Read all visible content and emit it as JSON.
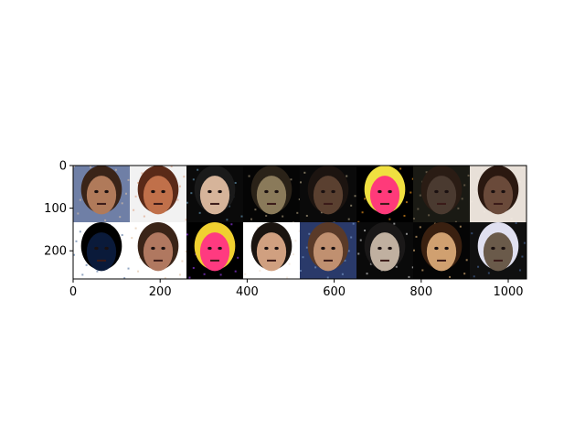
{
  "figure": {
    "background": "#ffffff",
    "image_grid": {
      "rows": 2,
      "cols": 8,
      "description_palette": [
        "#1b1b1b",
        "#6b4a3a",
        "#c58a6a",
        "#e8d3c0",
        "#2a3b6b",
        "#ff3c7a",
        "#f2e05a",
        "#ffffff"
      ]
    },
    "x_axis": {
      "ticks": [
        {
          "value": 0,
          "label": "0"
        },
        {
          "value": 200,
          "label": "200"
        },
        {
          "value": 400,
          "label": "400"
        },
        {
          "value": 600,
          "label": "600"
        },
        {
          "value": 800,
          "label": "800"
        },
        {
          "value": 1000,
          "label": "1000"
        }
      ],
      "range": [
        0,
        1042
      ]
    },
    "y_axis": {
      "ticks": [
        {
          "value": 0,
          "label": "0"
        },
        {
          "value": 100,
          "label": "100"
        },
        {
          "value": 200,
          "label": "200"
        }
      ],
      "range": [
        0,
        266
      ]
    }
  },
  "tiles": [
    {
      "bg": "#6f7fa6",
      "face": "#b07a5a",
      "hair": "#3a2418",
      "accent": "#d9c0a8"
    },
    {
      "bg": "#f2f2f2",
      "face": "#c0704a",
      "hair": "#5a2a18",
      "accent": "#e0a080"
    },
    {
      "bg": "#0a0a0a",
      "face": "#d6b49a",
      "hair": "#1a1a1a",
      "accent": "#6aa0c0"
    },
    {
      "bg": "#050505",
      "face": "#8a7a5a",
      "hair": "#2a2218",
      "accent": "#b0a080"
    },
    {
      "bg": "#0a0a0a",
      "face": "#5a4030",
      "hair": "#1c1410",
      "accent": "#c0b090"
    },
    {
      "bg": "#000000",
      "face": "#ff3a7a",
      "hair": "#f0e040",
      "accent": "#ffa020"
    },
    {
      "bg": "#1a1a14",
      "face": "#4a3a30",
      "hair": "#2a1c14",
      "accent": "#8a7a60"
    },
    {
      "bg": "#e8e0d8",
      "face": "#6a4a3a",
      "hair": "#2a1810",
      "accent": "#f0e8e0"
    },
    {
      "bg": "#ffffff",
      "face": "#0a1a3a",
      "hair": "#000000",
      "accent": "#4a6a9a"
    },
    {
      "bg": "#ffffff",
      "face": "#b07860",
      "hair": "#3a2418",
      "accent": "#e0c0a0"
    },
    {
      "bg": "#000000",
      "face": "#ff3a80",
      "hair": "#f0d030",
      "accent": "#a040ff"
    },
    {
      "bg": "#ffffff",
      "face": "#d0a080",
      "hair": "#1a1410",
      "accent": "#f0e0d0"
    },
    {
      "bg": "#2a3a6a",
      "face": "#c09070",
      "hair": "#5a3a28",
      "accent": "#80a0d0"
    },
    {
      "bg": "#0a0a0a",
      "face": "#c0b0a0",
      "hair": "#1a1818",
      "accent": "#e0e0e0"
    },
    {
      "bg": "#050505",
      "face": "#d0a070",
      "hair": "#3a2010",
      "accent": "#f0c080"
    },
    {
      "bg": "#101010",
      "face": "#6a5a4a",
      "hair": "#e0e0f0",
      "accent": "#4a6aa0"
    }
  ]
}
